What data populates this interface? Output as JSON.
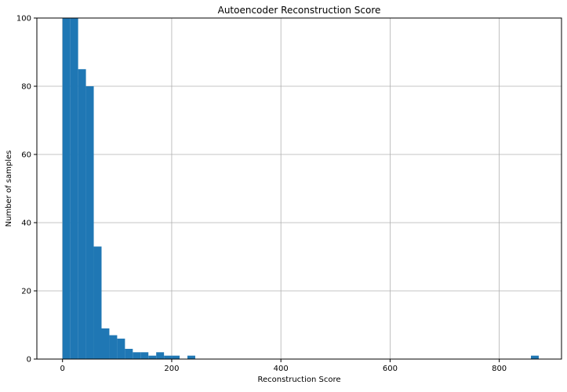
{
  "chart_data": {
    "type": "bar",
    "title": "Autoencoder Reconstruction Score",
    "xlabel": "Reconstruction Score",
    "ylabel": "Number of samples",
    "xlim": [
      -47,
      914
    ],
    "ylim": [
      0,
      100
    ],
    "xticks": [
      0,
      200,
      400,
      600,
      800
    ],
    "yticks": [
      0,
      20,
      40,
      60,
      80,
      100
    ],
    "grid": true,
    "bar_color": "#1f77b4",
    "bin_width": 14.3,
    "bins": [
      {
        "x0": 0.0,
        "value": 100
      },
      {
        "x0": 14.3,
        "value": 100
      },
      {
        "x0": 28.6,
        "value": 85
      },
      {
        "x0": 42.9,
        "value": 80
      },
      {
        "x0": 57.2,
        "value": 33
      },
      {
        "x0": 71.5,
        "value": 9
      },
      {
        "x0": 85.8,
        "value": 7
      },
      {
        "x0": 100.1,
        "value": 6
      },
      {
        "x0": 114.4,
        "value": 3
      },
      {
        "x0": 128.7,
        "value": 2
      },
      {
        "x0": 143.0,
        "value": 2
      },
      {
        "x0": 157.3,
        "value": 1
      },
      {
        "x0": 171.6,
        "value": 2
      },
      {
        "x0": 185.9,
        "value": 1
      },
      {
        "x0": 200.2,
        "value": 1
      },
      {
        "x0": 228.8,
        "value": 1
      },
      {
        "x0": 858.0,
        "value": 1
      }
    ]
  }
}
